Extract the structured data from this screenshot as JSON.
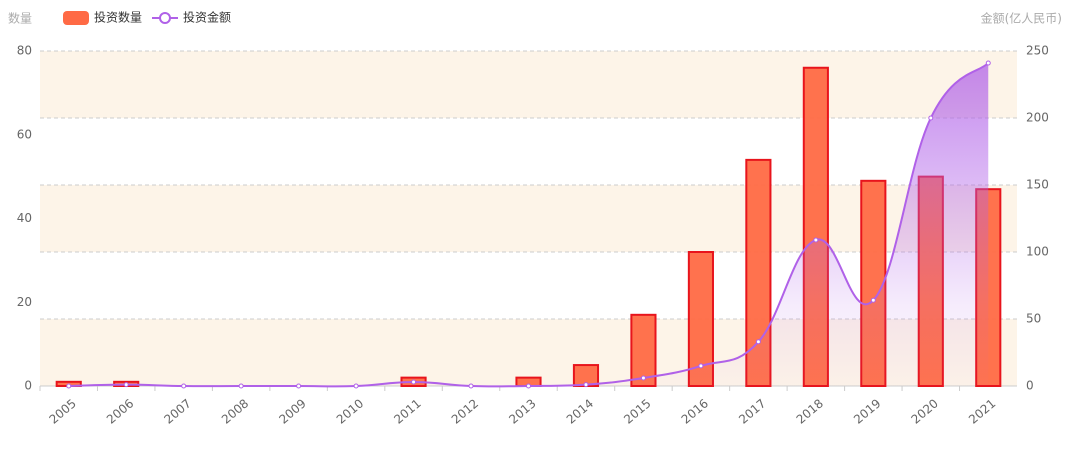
{
  "chart_data": {
    "type": "bar",
    "y_axis_name": "数量",
    "y2_axis_name": "金额(亿人民币)",
    "categories": [
      "2005",
      "2006",
      "2007",
      "2008",
      "2009",
      "2010",
      "2011",
      "2012",
      "2013",
      "2014",
      "2015",
      "2016",
      "2017",
      "2018",
      "2019",
      "2020",
      "2021"
    ],
    "series": [
      {
        "name": "投资数量",
        "type": "bar",
        "color": "#ff6a45",
        "values": [
          1,
          1,
          0,
          0,
          0,
          0,
          2,
          0,
          2,
          5,
          17,
          32,
          54,
          76,
          49,
          50,
          47
        ]
      },
      {
        "name": "投资金额",
        "type": "line",
        "axis": "y2",
        "color": "#b061e8",
        "values": [
          0,
          1,
          0,
          0,
          0,
          0,
          3,
          0,
          0,
          1,
          6,
          15,
          33,
          109,
          64,
          200,
          241
        ]
      }
    ],
    "ylim": [
      0,
      80
    ],
    "yticks": [
      0,
      20,
      40,
      60,
      80
    ],
    "y2lim": [
      0,
      250
    ],
    "y2ticks": [
      0,
      50,
      100,
      150,
      200,
      250
    ],
    "grid": true
  }
}
